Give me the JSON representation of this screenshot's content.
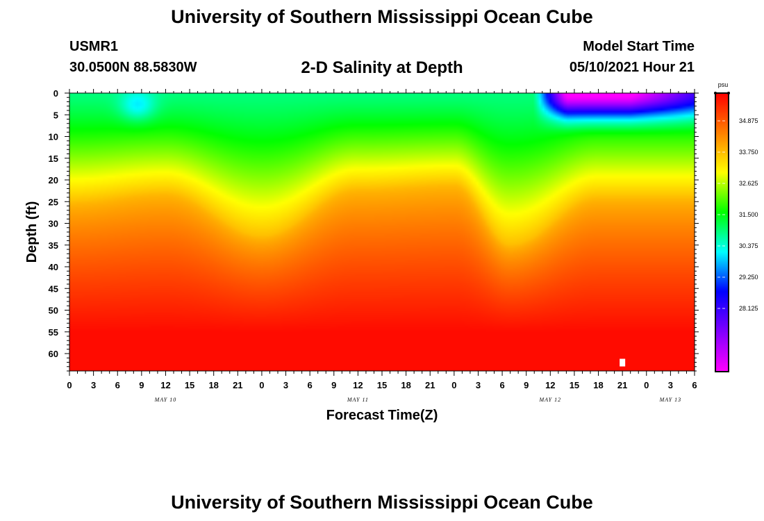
{
  "header": {
    "title_top": "University of Southern Mississippi Ocean Cube",
    "station_id": "USMR1",
    "coordinates": "30.0500N  88.5830W",
    "subtitle": "2-D Salinity at Depth",
    "model_start_label": "Model Start Time",
    "model_start_value": "05/10/2021 Hour 21"
  },
  "footer": {
    "title_bottom": "University of Southern Mississippi Ocean Cube"
  },
  "chart_data": {
    "type": "heatmap",
    "title": "2-D Salinity at Depth",
    "xlabel": "Forecast Time(Z)",
    "ylabel": "Depth (ft)",
    "x_hours_from_may10_00z": [
      0,
      78
    ],
    "x_tick_labels": [
      "0",
      "3",
      "6",
      "9",
      "12",
      "15",
      "18",
      "21",
      "0",
      "3",
      "6",
      "9",
      "12",
      "15",
      "18",
      "21",
      "0",
      "3",
      "6",
      "9",
      "12",
      "15",
      "18",
      "21",
      "0",
      "3",
      "6"
    ],
    "day_labels": [
      {
        "label": "MAY 10",
        "hour": 12
      },
      {
        "label": "MAY 11",
        "hour": 36
      },
      {
        "label": "MAY 12",
        "hour": 60
      },
      {
        "label": "MAY 13",
        "hour": 75
      }
    ],
    "y_range_ft": [
      0,
      64
    ],
    "y_ticks": [
      0,
      5,
      10,
      15,
      20,
      25,
      30,
      35,
      40,
      45,
      50,
      55,
      60
    ],
    "colorbar": {
      "unit": "psu",
      "min": 25.875,
      "max": 35.875,
      "tick_values": [
        34.875,
        33.75,
        32.625,
        31.5,
        30.375,
        29.25,
        28.125
      ],
      "tick_labels": [
        "34.875",
        "33.750",
        "32.625",
        "31.500",
        "30.375",
        "29.250",
        "28.125"
      ]
    },
    "isohaline_33_75_depth_ft": [
      {
        "hour": 0,
        "depth": 25
      },
      {
        "hour": 12,
        "depth": 23
      },
      {
        "hour": 24,
        "depth": 33
      },
      {
        "hour": 36,
        "depth": 22
      },
      {
        "hour": 48,
        "depth": 21
      },
      {
        "hour": 55,
        "depth": 35
      },
      {
        "hour": 66,
        "depth": 24
      },
      {
        "hour": 78,
        "depth": 24
      }
    ],
    "fresh_lens": {
      "hour_start": 60,
      "hour_end": 78,
      "max_depth_ft": 8,
      "min_salinity_psu": 26.5
    },
    "marker": {
      "hour": 69,
      "depth_ft": 62
    }
  },
  "colors": {
    "colormap": [
      "#ff00ff",
      "#8000ff",
      "#0000ff",
      "#00ffff",
      "#00ff00",
      "#ffff00",
      "#ff8000",
      "#ff0000"
    ]
  }
}
